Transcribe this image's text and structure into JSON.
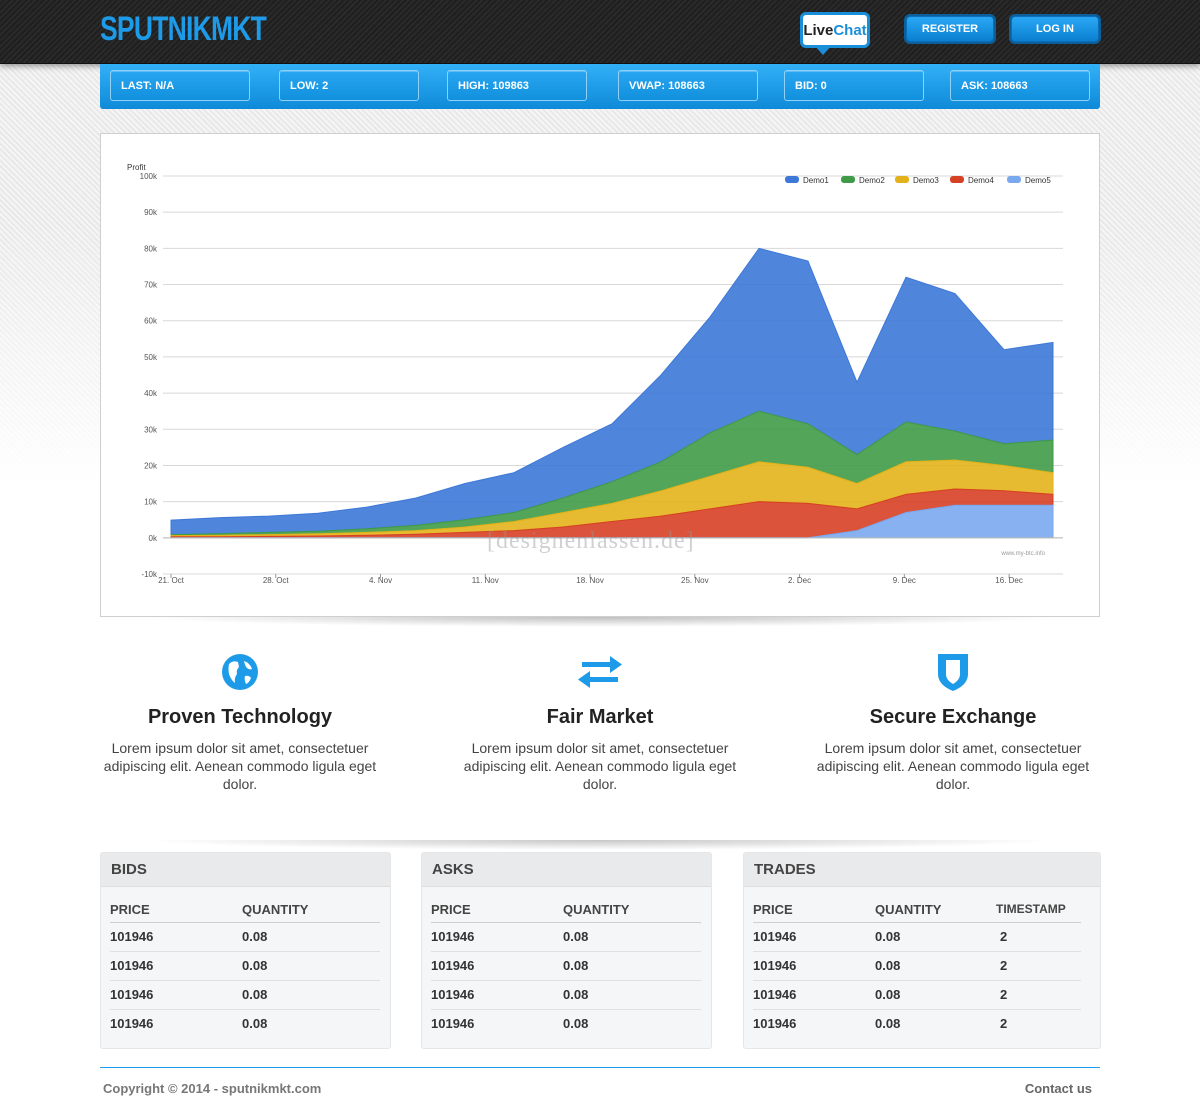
{
  "header": {
    "logo": "SPUTNIKMKT",
    "livechat_live": "Live",
    "livechat_chat": "Chat",
    "register_label": "REGISTER",
    "login_label": "LOG IN"
  },
  "ticker": [
    {
      "label": "LAST: N/A"
    },
    {
      "label": "LOW: 2"
    },
    {
      "label": "HIGH: 109863"
    },
    {
      "label": "VWAP: 108663"
    },
    {
      "label": "BID: 0"
    },
    {
      "label": "ASK: 108663"
    }
  ],
  "colors": {
    "accent": "#1e9be8",
    "demo1": "#3d78d8",
    "demo2": "#3f9b47",
    "demo3": "#e3b21b",
    "demo4": "#d64025",
    "demo5": "#7aa8ee"
  },
  "chart_data": {
    "type": "area",
    "stacked": true,
    "ylabel": "Profit",
    "ylim": [
      -10000,
      100000
    ],
    "yticks": [
      "-10k",
      "0k",
      "10k",
      "20k",
      "30k",
      "40k",
      "50k",
      "60k",
      "70k",
      "80k",
      "90k",
      "100k"
    ],
    "xticks": [
      "21. Oct",
      "28. Oct",
      "4. Nov",
      "11. Nov",
      "18. Nov",
      "25. Nov",
      "2. Dec",
      "9. Dec",
      "16. Dec"
    ],
    "credit": "www.my-btc.info",
    "legend_position": "top-right",
    "x": [
      "21. Oct",
      "24. Oct",
      "28. Oct",
      "31. Oct",
      "4. Nov",
      "7. Nov",
      "11. Nov",
      "14. Nov",
      "18. Nov",
      "21. Nov",
      "25. Nov",
      "28. Nov",
      "2. Dec",
      "5. Dec",
      "9. Dec",
      "12. Dec",
      "16. Dec",
      "19. Dec",
      "20. Dec"
    ],
    "series": [
      {
        "name": "Demo5",
        "values": [
          0,
          0,
          0,
          0,
          0,
          0,
          0,
          0,
          0,
          0,
          0,
          0,
          0,
          0,
          2000,
          7000,
          9000,
          9000,
          9000
        ]
      },
      {
        "name": "Demo4",
        "values": [
          300,
          300,
          400,
          500,
          700,
          1000,
          1500,
          2000,
          3000,
          4500,
          6000,
          8000,
          10000,
          9500,
          6000,
          5000,
          4500,
          4000,
          3000
        ]
      },
      {
        "name": "Demo3",
        "values": [
          300,
          400,
          500,
          600,
          800,
          1000,
          1500,
          2500,
          4000,
          5000,
          7000,
          9000,
          11000,
          10000,
          7000,
          9000,
          8000,
          7000,
          6000
        ]
      },
      {
        "name": "Demo2",
        "values": [
          300,
          400,
          600,
          700,
          1000,
          1500,
          2000,
          2500,
          4000,
          6000,
          8000,
          12000,
          14000,
          12000,
          8000,
          11000,
          8000,
          6000,
          9000
        ]
      },
      {
        "name": "Demo1",
        "values": [
          4000,
          4500,
          4500,
          5000,
          6000,
          7500,
          10000,
          11000,
          14000,
          16000,
          24000,
          32000,
          45000,
          45000,
          20000,
          40000,
          38000,
          26000,
          27000
        ]
      }
    ]
  },
  "features": [
    {
      "title": "Proven Technology",
      "text": "Lorem ipsum dolor sit amet, consectetuer adipiscing elit. Aenean commodo ligula eget dolor.",
      "icon": "globe-icon"
    },
    {
      "title": "Fair Market",
      "text": "Lorem ipsum dolor sit amet, consectetuer adipiscing elit. Aenean commodo ligula eget dolor.",
      "icon": "exchange-arrows-icon"
    },
    {
      "title": "Secure Exchange",
      "text": "Lorem ipsum dolor sit amet, consectetuer adipiscing elit. Aenean commodo ligula eget dolor.",
      "icon": "shield-icon"
    }
  ],
  "bids": {
    "title": "BIDS",
    "columns": [
      "PRICE",
      "QUANTITY"
    ],
    "rows": [
      [
        "101946",
        "0.08"
      ],
      [
        "101946",
        "0.08"
      ],
      [
        "101946",
        "0.08"
      ],
      [
        "101946",
        "0.08"
      ]
    ]
  },
  "asks": {
    "title": "ASKS",
    "columns": [
      "PRICE",
      "QUANTITY"
    ],
    "rows": [
      [
        "101946",
        "0.08"
      ],
      [
        "101946",
        "0.08"
      ],
      [
        "101946",
        "0.08"
      ],
      [
        "101946",
        "0.08"
      ]
    ]
  },
  "trades": {
    "title": "TRADES",
    "columns": [
      "PRICE",
      "QUANTITY",
      "TIMESTAMP"
    ],
    "rows": [
      [
        "101946",
        "0.08",
        "2"
      ],
      [
        "101946",
        "0.08",
        "2"
      ],
      [
        "101946",
        "0.08",
        "2"
      ],
      [
        "101946",
        "0.08",
        "2"
      ]
    ]
  },
  "watermark": "[designenlassen.de]",
  "footer": {
    "copyright": "Copyright © 2014 - sputnikmkt.com",
    "contact": "Contact us"
  }
}
